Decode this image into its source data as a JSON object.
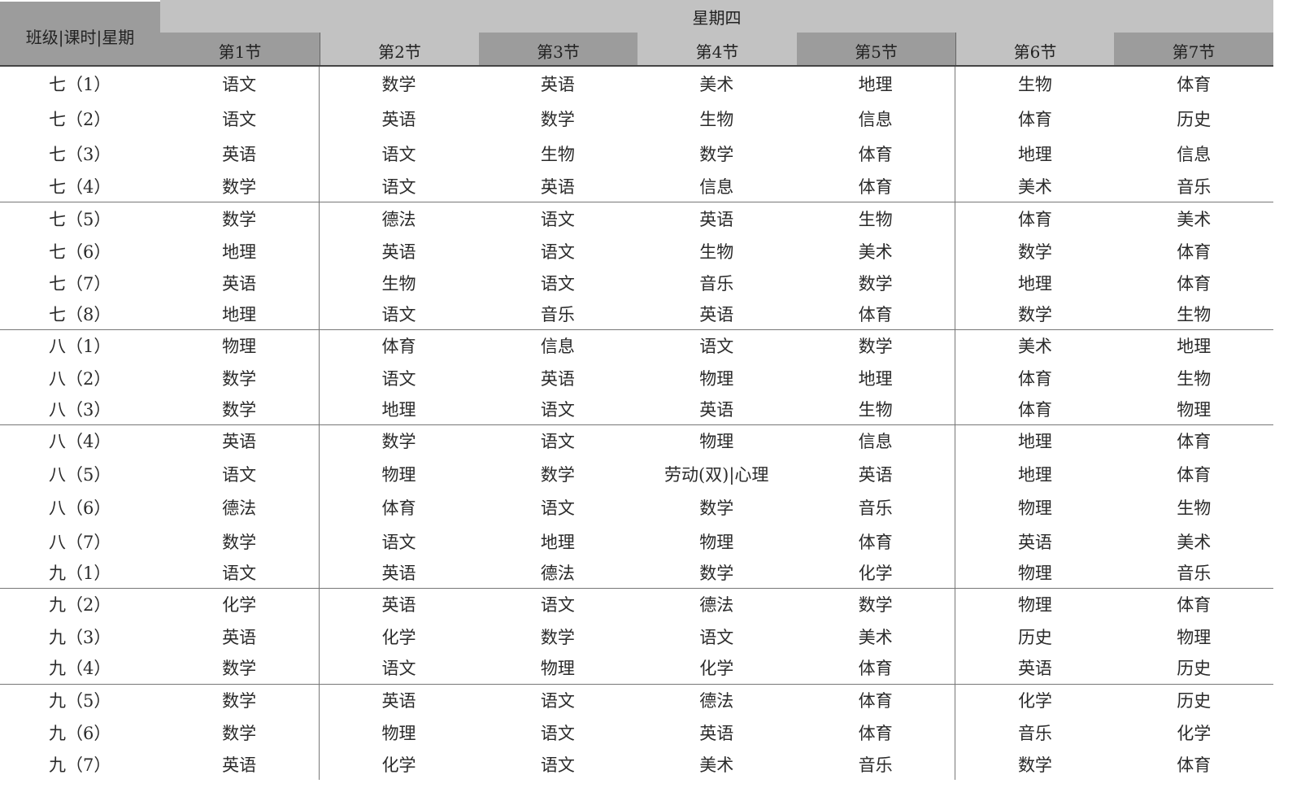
{
  "header": {
    "corner": "班级|课时|星期",
    "day": "星期四",
    "periods": [
      "第1节",
      "第2节",
      "第3节",
      "第4节",
      "第5节",
      "第6节",
      "第7节"
    ]
  },
  "rows": [
    {
      "class": "七（1）",
      "cells": [
        "语文",
        "数学",
        "英语",
        "美术",
        "地理",
        "生物",
        "体育"
      ]
    },
    {
      "class": "七（2）",
      "cells": [
        "语文",
        "英语",
        "数学",
        "生物",
        "信息",
        "体育",
        "历史"
      ]
    },
    {
      "class": "七（3）",
      "cells": [
        "英语",
        "语文",
        "生物",
        "数学",
        "体育",
        "地理",
        "信息"
      ]
    },
    {
      "class": "七（4）",
      "cells": [
        "数学",
        "语文",
        "英语",
        "信息",
        "体育",
        "美术",
        "音乐"
      ]
    },
    {
      "class": "七（5）",
      "cells": [
        "数学",
        "德法",
        "语文",
        "英语",
        "生物",
        "体育",
        "美术"
      ]
    },
    {
      "class": "七（6）",
      "cells": [
        "地理",
        "英语",
        "语文",
        "生物",
        "美术",
        "数学",
        "体育"
      ]
    },
    {
      "class": "七（7）",
      "cells": [
        "英语",
        "生物",
        "语文",
        "音乐",
        "数学",
        "地理",
        "体育"
      ]
    },
    {
      "class": "七（8）",
      "cells": [
        "地理",
        "语文",
        "音乐",
        "英语",
        "体育",
        "数学",
        "生物"
      ]
    },
    {
      "class": "八（1）",
      "cells": [
        "物理",
        "体育",
        "信息",
        "语文",
        "数学",
        "美术",
        "地理"
      ]
    },
    {
      "class": "八（2）",
      "cells": [
        "数学",
        "语文",
        "英语",
        "物理",
        "地理",
        "体育",
        "生物"
      ]
    },
    {
      "class": "八（3）",
      "cells": [
        "数学",
        "地理",
        "语文",
        "英语",
        "生物",
        "体育",
        "物理"
      ]
    },
    {
      "class": "八（4）",
      "cells": [
        "英语",
        "数学",
        "语文",
        "物理",
        "信息",
        "地理",
        "体育"
      ]
    },
    {
      "class": "八（5）",
      "cells": [
        "语文",
        "物理",
        "数学",
        "劳动(双)|心理",
        "英语",
        "地理",
        "体育"
      ]
    },
    {
      "class": "八（6）",
      "cells": [
        "德法",
        "体育",
        "语文",
        "数学",
        "音乐",
        "物理",
        "生物"
      ]
    },
    {
      "class": "八（7）",
      "cells": [
        "数学",
        "语文",
        "地理",
        "物理",
        "体育",
        "英语",
        "美术"
      ]
    },
    {
      "class": "九（1）",
      "cells": [
        "语文",
        "英语",
        "德法",
        "数学",
        "化学",
        "物理",
        "音乐"
      ]
    },
    {
      "class": "九（2）",
      "cells": [
        "化学",
        "英语",
        "语文",
        "德法",
        "数学",
        "物理",
        "体育"
      ]
    },
    {
      "class": "九（3）",
      "cells": [
        "英语",
        "化学",
        "数学",
        "语文",
        "美术",
        "历史",
        "物理"
      ]
    },
    {
      "class": "九（4）",
      "cells": [
        "数学",
        "语文",
        "物理",
        "化学",
        "体育",
        "英语",
        "历史"
      ]
    },
    {
      "class": "九（5）",
      "cells": [
        "数学",
        "英语",
        "语文",
        "德法",
        "体育",
        "化学",
        "历史"
      ]
    },
    {
      "class": "九（6）",
      "cells": [
        "数学",
        "物理",
        "语文",
        "英语",
        "体育",
        "音乐",
        "化学"
      ]
    },
    {
      "class": "九（7）",
      "cells": [
        "英语",
        "化学",
        "语文",
        "美术",
        "音乐",
        "数学",
        "体育"
      ]
    }
  ]
}
